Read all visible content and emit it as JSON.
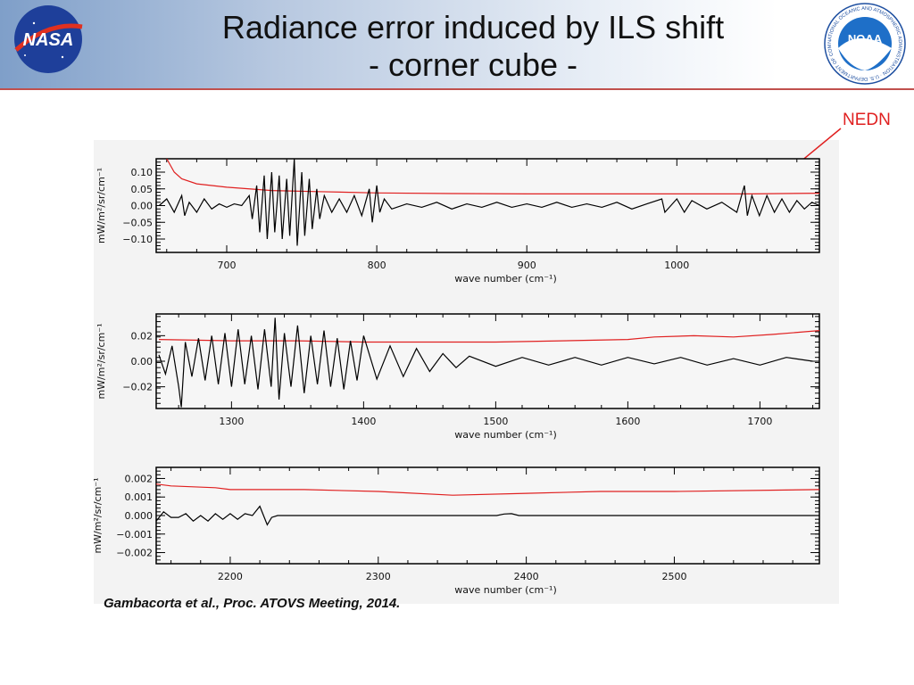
{
  "header": {
    "title_line1": "Radiance error induced by ILS shift",
    "title_line2": "- corner cube -",
    "left_logo": "NASA",
    "right_logo": "NOAA",
    "right_logo_ring_text": "NATIONAL OCEANIC AND ATMOSPHERIC ADMINISTRATION · U.S. DEPARTMENT OF COMMERCE"
  },
  "annotation": {
    "label": "NEDN",
    "color": "#e02020"
  },
  "citation": "Gambacorta et al., Proc. ATOVS Meeting, 2014.",
  "chart_data": [
    {
      "type": "line",
      "xlabel": "wave number (cm⁻¹)",
      "ylabel": "mW/m²/sr/cm⁻¹",
      "xlim": [
        653,
        1095
      ],
      "ylim": [
        -0.14,
        0.14
      ],
      "xticks": [
        700,
        800,
        900,
        1000
      ],
      "xtick_labels": [
        "700",
        "800",
        "900",
        "1000"
      ],
      "yticks": [
        0.1,
        0.05,
        0.0,
        -0.05,
        -0.1
      ],
      "ytick_labels": [
        "0.10",
        "0.05",
        "0.00",
        "−0.05",
        "−0.10"
      ],
      "series": [
        {
          "name": "radiance error",
          "color": "#000000",
          "x": [
            655,
            660,
            665,
            670,
            672,
            675,
            680,
            685,
            690,
            695,
            700,
            705,
            710,
            715,
            717,
            720,
            722,
            725,
            727,
            730,
            732,
            735,
            737,
            740,
            742,
            745,
            747,
            750,
            752,
            755,
            757,
            760,
            762,
            765,
            770,
            775,
            780,
            785,
            790,
            795,
            797,
            800,
            802,
            805,
            810,
            820,
            830,
            840,
            850,
            860,
            870,
            880,
            890,
            900,
            910,
            920,
            930,
            940,
            950,
            960,
            970,
            980,
            990,
            992,
            1000,
            1005,
            1010,
            1020,
            1030,
            1040,
            1045,
            1047,
            1050,
            1055,
            1060,
            1065,
            1070,
            1075,
            1080,
            1085,
            1090,
            1095
          ],
          "y": [
            0,
            0.02,
            -0.02,
            0.03,
            -0.03,
            0.01,
            -0.02,
            0.02,
            -0.01,
            0.005,
            -0.005,
            0.005,
            0,
            0.03,
            -0.04,
            0.06,
            -0.08,
            0.09,
            -0.1,
            0.1,
            -0.08,
            0.09,
            -0.1,
            0.08,
            -0.09,
            0.14,
            -0.12,
            0.1,
            -0.09,
            0.08,
            -0.07,
            0.05,
            -0.04,
            0.03,
            -0.02,
            0.02,
            -0.02,
            0.03,
            -0.03,
            0.05,
            -0.05,
            0.06,
            -0.02,
            0.02,
            -0.01,
            0.005,
            -0.005,
            0.01,
            -0.01,
            0.005,
            -0.005,
            0.01,
            -0.005,
            0.005,
            -0.005,
            0.01,
            -0.005,
            0.005,
            -0.005,
            0.01,
            -0.01,
            0.005,
            0.02,
            -0.02,
            0.02,
            -0.02,
            0.015,
            -0.01,
            0.01,
            -0.02,
            0.06,
            -0.03,
            0.03,
            -0.03,
            0.03,
            -0.02,
            0.02,
            -0.02,
            0.015,
            -0.01,
            0.01,
            0
          ]
        },
        {
          "name": "NEDN",
          "color": "#e02020",
          "x": [
            660,
            665,
            670,
            680,
            700,
            730,
            760,
            800,
            850,
            900,
            950,
            1000,
            1050,
            1095
          ],
          "y": [
            0.14,
            0.1,
            0.08,
            0.065,
            0.055,
            0.045,
            0.042,
            0.038,
            0.036,
            0.035,
            0.035,
            0.035,
            0.035,
            0.037
          ]
        }
      ]
    },
    {
      "type": "line",
      "xlabel": "wave number (cm⁻¹)",
      "ylabel": "mW/m²/sr/cm⁻¹",
      "xlim": [
        1243,
        1745
      ],
      "ylim": [
        -0.037,
        0.037
      ],
      "xticks": [
        1300,
        1400,
        1500,
        1600,
        1700
      ],
      "xtick_labels": [
        "1300",
        "1400",
        "1500",
        "1600",
        "1700"
      ],
      "yticks": [
        0.02,
        0.0,
        -0.02
      ],
      "ytick_labels": [
        "0.02",
        "0.00",
        "−0.02"
      ],
      "series": [
        {
          "name": "radiance error",
          "color": "#000000",
          "x": [
            1245,
            1250,
            1255,
            1260,
            1262,
            1265,
            1270,
            1275,
            1280,
            1285,
            1290,
            1295,
            1300,
            1305,
            1310,
            1315,
            1320,
            1325,
            1330,
            1333,
            1336,
            1340,
            1345,
            1350,
            1355,
            1360,
            1365,
            1370,
            1375,
            1380,
            1385,
            1390,
            1395,
            1400,
            1410,
            1420,
            1430,
            1440,
            1450,
            1460,
            1470,
            1480,
            1500,
            1520,
            1540,
            1560,
            1580,
            1600,
            1620,
            1640,
            1660,
            1680,
            1700,
            1720,
            1740
          ],
          "y": [
            0.005,
            -0.01,
            0.012,
            -0.02,
            -0.036,
            0.015,
            -0.012,
            0.018,
            -0.015,
            0.02,
            -0.018,
            0.022,
            -0.02,
            0.025,
            -0.018,
            0.02,
            -0.022,
            0.025,
            -0.02,
            0.034,
            -0.03,
            0.022,
            -0.02,
            0.028,
            -0.025,
            0.02,
            -0.018,
            0.024,
            -0.02,
            0.018,
            -0.022,
            0.016,
            -0.015,
            0.02,
            -0.014,
            0.012,
            -0.012,
            0.01,
            -0.008,
            0.006,
            -0.005,
            0.004,
            -0.004,
            0.003,
            -0.003,
            0.003,
            -0.003,
            0.003,
            -0.002,
            0.003,
            -0.003,
            0.002,
            -0.003,
            0.003,
            0
          ]
        },
        {
          "name": "NEDN",
          "color": "#e02020",
          "x": [
            1245,
            1300,
            1350,
            1400,
            1450,
            1500,
            1550,
            1600,
            1620,
            1650,
            1680,
            1710,
            1745
          ],
          "y": [
            0.017,
            0.016,
            0.016,
            0.015,
            0.015,
            0.015,
            0.016,
            0.017,
            0.019,
            0.02,
            0.019,
            0.021,
            0.024
          ]
        }
      ]
    },
    {
      "type": "line",
      "xlabel": "wave number (cm⁻¹)",
      "ylabel": "mW/m²/sr/cm⁻¹",
      "xlim": [
        2150,
        2598
      ],
      "ylim": [
        -0.0026,
        0.0026
      ],
      "xticks": [
        2200,
        2300,
        2400,
        2500
      ],
      "xtick_labels": [
        "2200",
        "2300",
        "2400",
        "2500"
      ],
      "yticks": [
        0.002,
        0.001,
        0.0,
        -0.001,
        -0.002
      ],
      "ytick_labels": [
        "0.002",
        "0.001",
        "0.000",
        "−0.001",
        "−0.002"
      ],
      "series": [
        {
          "name": "radiance error",
          "color": "#000000",
          "x": [
            2150,
            2155,
            2160,
            2165,
            2170,
            2175,
            2180,
            2185,
            2190,
            2195,
            2200,
            2205,
            2210,
            2215,
            2220,
            2225,
            2228,
            2232,
            2240,
            2250,
            2300,
            2350,
            2380,
            2385,
            2390,
            2395,
            2450,
            2500,
            2598
          ],
          "y": [
            -0.0003,
            0.0002,
            -0.0001,
            -0.0001,
            0.0001,
            -0.0003,
            0,
            -0.0003,
            0.0001,
            -0.0002,
            0.0001,
            -0.0002,
            0.0001,
            0,
            0.0005,
            -0.0005,
            -0.0001,
            0,
            0,
            0,
            0,
            0,
            0,
            8e-05,
            0.0001,
            0,
            0,
            0,
            0
          ]
        },
        {
          "name": "NEDN",
          "color": "#e02020",
          "x": [
            2150,
            2160,
            2190,
            2200,
            2250,
            2300,
            2350,
            2400,
            2450,
            2500,
            2598
          ],
          "y": [
            0.0017,
            0.0016,
            0.0015,
            0.0014,
            0.0014,
            0.0013,
            0.0011,
            0.0012,
            0.0013,
            0.0013,
            0.0014
          ]
        }
      ]
    }
  ]
}
